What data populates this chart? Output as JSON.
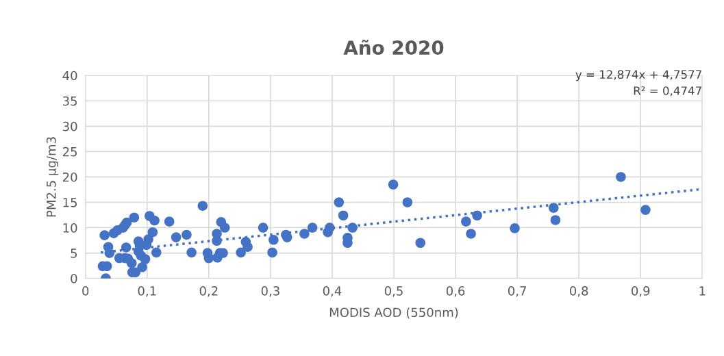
{
  "chart_data": {
    "type": "scatter",
    "title": "Año 2020",
    "xlabel": "MODIS AOD (550nm)",
    "ylabel": "PM2.5 μg/m3",
    "xlim": [
      0,
      1
    ],
    "ylim": [
      0,
      40
    ],
    "xticks": [
      0,
      {
        "value": 0.1,
        "label": "0,1"
      },
      {
        "value": 0.2,
        "label": "0,2"
      },
      {
        "value": 0.3,
        "label": "0,3"
      },
      {
        "value": 0.4,
        "label": "0,4"
      },
      {
        "value": 0.5,
        "label": "0,5"
      },
      {
        "value": 0.6,
        "label": "0,6"
      },
      {
        "value": 0.7,
        "label": "0,7"
      },
      {
        "value": 0.8,
        "label": "0,8"
      },
      {
        "value": 0.9,
        "label": "0,9"
      },
      1
    ],
    "yticks": [
      0,
      5,
      10,
      15,
      20,
      25,
      30,
      35,
      40
    ],
    "grid": true,
    "marker": "circle",
    "annotations": [
      "y = 12,874x + 4,7577",
      "R² = 0,4747"
    ],
    "series": [
      {
        "color": "#4472c4",
        "x": [
          0.033,
          0.028,
          0.035,
          0.031,
          0.037,
          0.039,
          0.046,
          0.052,
          0.061,
          0.064,
          0.067,
          0.066,
          0.055,
          0.064,
          0.069,
          0.075,
          0.076,
          0.081,
          0.079,
          0.086,
          0.088,
          0.086,
          0.09,
          0.092,
          0.097,
          0.099,
          0.102,
          0.104,
          0.109,
          0.112,
          0.115,
          0.136,
          0.147,
          0.164,
          0.172,
          0.19,
          0.198,
          0.2,
          0.213,
          0.213,
          0.214,
          0.218,
          0.22,
          0.223,
          0.226,
          0.252,
          0.26,
          0.263,
          0.288,
          0.303,
          0.305,
          0.325,
          0.327,
          0.355,
          0.368,
          0.393,
          0.396,
          0.411,
          0.418,
          0.425,
          0.425,
          0.433,
          0.499,
          0.522,
          0.543,
          0.617,
          0.625,
          0.635,
          0.696,
          0.759,
          0.762,
          0.868,
          0.908
        ],
        "values": [
          0.0,
          2.4,
          2.4,
          8.5,
          6.2,
          5.0,
          8.9,
          9.5,
          10.0,
          10.5,
          11.0,
          6.1,
          4.0,
          4.0,
          3.9,
          3.0,
          1.2,
          1.2,
          12.0,
          7.3,
          6.4,
          5.3,
          4.5,
          2.2,
          3.8,
          6.6,
          7.7,
          12.3,
          9.1,
          11.4,
          5.1,
          11.2,
          8.1,
          8.6,
          5.1,
          14.3,
          5.0,
          4.0,
          8.8,
          7.4,
          4.1,
          5.0,
          11.1,
          5.0,
          10.0,
          5.1,
          7.2,
          6.2,
          10.0,
          5.1,
          7.6,
          8.6,
          8.1,
          8.8,
          10.0,
          9.1,
          10.0,
          15.0,
          12.4,
          8.0,
          7.0,
          10.0,
          18.5,
          15.0,
          7.0,
          11.2,
          8.8,
          12.4,
          9.9,
          13.9,
          11.5,
          20.0,
          13.5
        ]
      },
      {
        "type": "line",
        "color": "#4472c4",
        "line_style": "dotted",
        "marker": "none",
        "x": [
          0.025,
          1
        ],
        "values": [
          5.1,
          17.6
        ]
      }
    ]
  }
}
